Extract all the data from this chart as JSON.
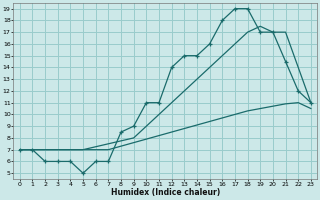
{
  "title": "",
  "xlabel": "Humidex (Indice chaleur)",
  "bg_color": "#cce8e8",
  "grid_color": "#99cccc",
  "line_color": "#1a6b6b",
  "xlim": [
    -0.5,
    23.5
  ],
  "ylim": [
    4.5,
    19.5
  ],
  "xticks": [
    0,
    1,
    2,
    3,
    4,
    5,
    6,
    7,
    8,
    9,
    10,
    11,
    12,
    13,
    14,
    15,
    16,
    17,
    18,
    19,
    20,
    21,
    22,
    23
  ],
  "yticks": [
    5,
    6,
    7,
    8,
    9,
    10,
    11,
    12,
    13,
    14,
    15,
    16,
    17,
    18,
    19
  ],
  "line1_x": [
    0,
    1,
    2,
    3,
    4,
    5,
    6,
    7,
    8,
    9,
    10,
    11,
    12,
    13,
    14,
    15,
    16,
    17,
    18,
    19,
    20,
    21,
    22,
    23
  ],
  "line1_y": [
    7,
    7,
    6,
    6,
    6,
    5,
    6,
    6,
    8.5,
    9,
    11,
    11,
    14,
    15,
    15,
    16,
    18,
    19,
    19,
    17,
    17,
    14.5,
    12,
    11
  ],
  "line2_x": [
    0,
    2,
    5,
    9,
    10,
    11,
    12,
    13,
    14,
    15,
    16,
    17,
    18,
    19,
    20,
    21,
    22,
    23
  ],
  "line2_y": [
    7,
    7,
    7,
    8,
    9,
    10,
    11,
    12,
    13,
    14,
    15,
    16,
    17,
    17.5,
    17,
    17,
    14,
    11
  ],
  "line3_x": [
    0,
    1,
    2,
    3,
    4,
    5,
    6,
    7,
    8,
    9,
    10,
    11,
    12,
    13,
    14,
    15,
    16,
    17,
    18,
    19,
    20,
    21,
    22,
    23
  ],
  "line3_y": [
    7,
    7,
    7,
    7,
    7,
    7,
    7,
    7,
    7.3,
    7.6,
    7.9,
    8.2,
    8.5,
    8.8,
    9.1,
    9.4,
    9.7,
    10.0,
    10.3,
    10.5,
    10.7,
    10.9,
    11.0,
    10.5
  ]
}
